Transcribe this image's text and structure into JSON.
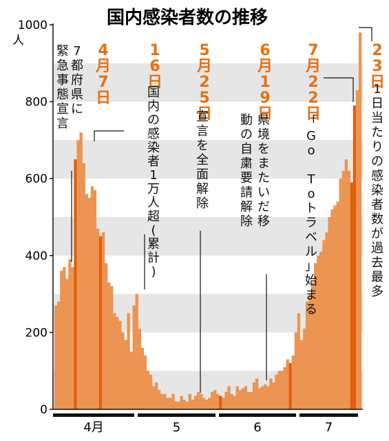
{
  "chart_data": {
    "type": "bar",
    "title": "国内感染者数の推移",
    "ylabel": "人",
    "ylim": [
      0,
      1000
    ],
    "y_ticks": [
      "0",
      "200",
      "400",
      "600",
      "800",
      "1000"
    ],
    "months": [
      "4月",
      "5",
      "6",
      "7"
    ],
    "grid": "alternating-bands",
    "colors": {
      "bar": "#ec9452",
      "highlight": "#e25d0d",
      "band": "#e6e6e6",
      "label": "#e8700f"
    },
    "x_unit": "date (2020年3月27日〜7月23日)",
    "values": [
      270,
      280,
      360,
      370,
      340,
      390,
      370,
      650,
      700,
      720,
      640,
      560,
      550,
      580,
      570,
      470,
      450,
      460,
      380,
      330,
      320,
      250,
      240,
      230,
      200,
      180,
      250,
      150,
      270,
      300,
      210,
      160,
      140,
      100,
      90,
      60,
      70,
      50,
      40,
      40,
      30,
      30,
      40,
      20,
      20,
      35,
      25,
      20,
      40,
      25,
      35,
      45,
      40,
      30,
      25,
      30,
      45,
      50,
      40,
      35,
      30,
      45,
      60,
      40,
      35,
      60,
      50,
      55,
      60,
      45,
      45,
      70,
      80,
      55,
      60,
      65,
      60,
      80,
      70,
      90,
      100,
      100,
      110,
      130,
      120,
      140,
      200,
      250,
      180,
      210,
      280,
      300,
      330,
      380,
      400,
      410,
      440,
      460,
      500,
      520,
      530,
      540,
      600,
      620,
      650,
      620,
      590,
      790,
      830,
      980
    ]
  },
  "annotations": [
    {
      "date": "4月7日",
      "text": "7都府県に緊急事態宣言"
    },
    {
      "date": "16日",
      "text": "国内の感染者1万人超(累計)"
    },
    {
      "date": "5月25日",
      "text": "宣言を全面解除"
    },
    {
      "date": "6月19日",
      "text": "県境をまたいだ移動の自粛要請解除"
    },
    {
      "date": "7月22日",
      "text": "「Go Toトラベル」始まる"
    },
    {
      "date": "23日",
      "text": "1日当たりの感染者数が過去最多"
    }
  ]
}
